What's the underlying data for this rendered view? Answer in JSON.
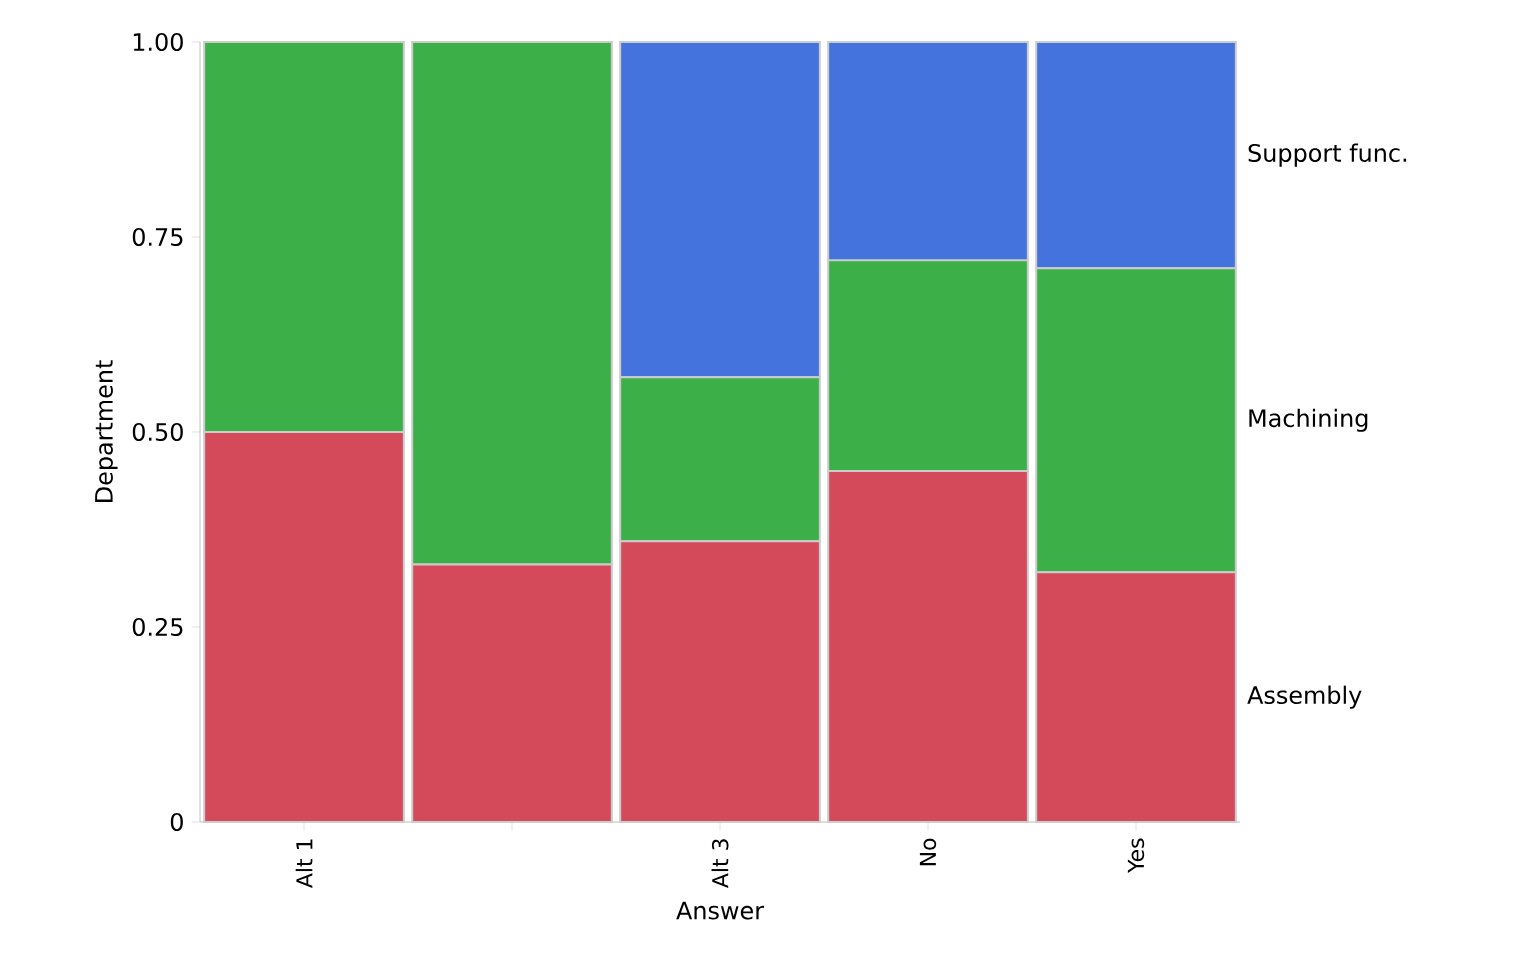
{
  "chart_data": {
    "type": "bar",
    "stacked": true,
    "xlabel": "Answer",
    "ylabel": "Department",
    "categories": [
      "Alt 1",
      null,
      "Alt 3",
      "No",
      "Yes"
    ],
    "series": [
      {
        "name": "Assembly",
        "color": "#d44a5a",
        "values": [
          0.5,
          0.33,
          0.36,
          0.45,
          0.32
        ]
      },
      {
        "name": "Machining",
        "color": "#3daf49",
        "values": [
          0.5,
          0.67,
          0.21,
          0.27,
          0.39
        ]
      },
      {
        "name": "Support func.",
        "color": "#4573dd",
        "values": [
          0,
          0,
          0.43,
          0.28,
          0.29
        ]
      }
    ],
    "ylim": [
      0,
      1
    ],
    "yticks": [
      0,
      0.25,
      {
        "value": 0.5,
        "label": "0.50"
      },
      0.75,
      {
        "value": 1,
        "label": "1.00"
      }
    ],
    "legend": false
  }
}
